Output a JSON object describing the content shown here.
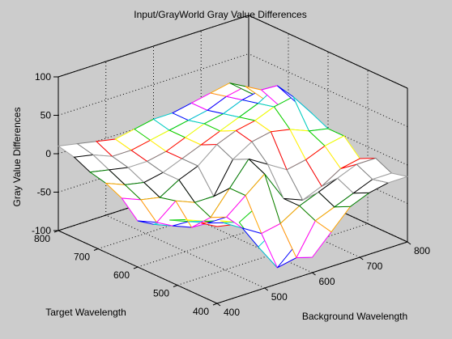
{
  "chart_data": {
    "type": "surface",
    "title": "Input/GrayWorld Gray Value Differences",
    "xlabel": "Background Wavelength",
    "ylabel": "Target Wavelength",
    "zlabel": "Gray Value Differences",
    "xlim": [
      400,
      800
    ],
    "ylim": [
      400,
      800
    ],
    "zlim": [
      -100,
      100
    ],
    "x_ticks": [
      400,
      500,
      600,
      700,
      800
    ],
    "y_ticks": [
      400,
      500,
      600,
      700,
      800
    ],
    "z_ticks": [
      -100,
      -50,
      0,
      50,
      100
    ],
    "x_tick_labels": [
      "400",
      "500",
      "600",
      "700",
      "800"
    ],
    "y_tick_labels": [
      "400",
      "500",
      "600",
      "700",
      "800"
    ],
    "z_tick_labels": [
      "-100",
      "-50",
      "0",
      "50",
      "100"
    ],
    "grid": true,
    "x": [
      400,
      440,
      480,
      520,
      560,
      600,
      640,
      680,
      720,
      760,
      800
    ],
    "y": [
      400,
      440,
      480,
      520,
      560,
      600,
      640,
      680,
      720,
      760,
      800
    ],
    "z": [
      [
        0,
        -5,
        8,
        -30,
        -60,
        -80,
        -55,
        -30,
        -20,
        -15,
        -15
      ],
      [
        -5,
        -10,
        -20,
        -60,
        -95,
        -90,
        -50,
        -40,
        -30,
        -20,
        -20
      ],
      [
        -10,
        -20,
        -30,
        -45,
        -60,
        -55,
        -40,
        -30,
        -20,
        -10,
        -10
      ],
      [
        -20,
        -30,
        -40,
        -40,
        -20,
        0,
        -40,
        -50,
        -40,
        -25,
        -20
      ],
      [
        -35,
        -45,
        -55,
        -50,
        -20,
        10,
        -5,
        -20,
        -15,
        -5,
        0
      ],
      [
        -40,
        -50,
        -30,
        -40,
        -40,
        0,
        15,
        20,
        15,
        5,
        0
      ],
      [
        -20,
        -30,
        -35,
        -20,
        -10,
        10,
        20,
        25,
        35,
        40,
        10
      ],
      [
        -10,
        -20,
        -25,
        -20,
        -10,
        0,
        10,
        20,
        30,
        45,
        15
      ],
      [
        -5,
        -10,
        -15,
        -15,
        -10,
        0,
        10,
        15,
        25,
        30,
        0
      ],
      [
        5,
        0,
        -10,
        -10,
        -5,
        0,
        5,
        10,
        20,
        25,
        0
      ],
      [
        10,
        5,
        0,
        -5,
        0,
        5,
        5,
        10,
        15,
        20,
        0
      ]
    ],
    "colors": [
      "#ff0000",
      "#ffff00",
      "#00cc00",
      "#00cccc",
      "#0000ff",
      "#ff00ff",
      "#ffa500",
      "#008000",
      "#000000",
      "#a0a0a0",
      "#808080"
    ]
  }
}
